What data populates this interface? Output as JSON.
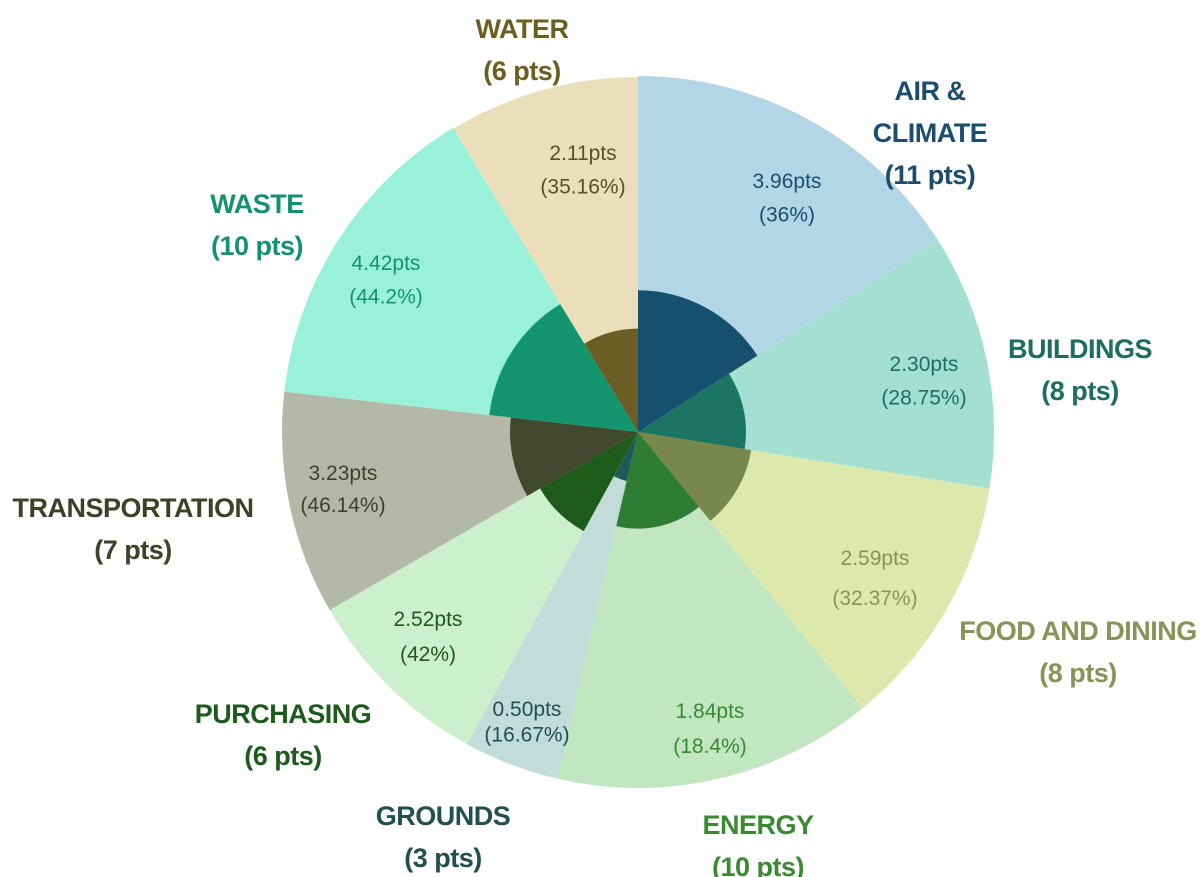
{
  "chart_data": {
    "type": "pie",
    "segments": [
      {
        "category": "AIR & CLIMATE",
        "category_lines": [
          "AIR &",
          "CLIMATE"
        ],
        "max_label": "(11 pts)",
        "max_pts": 11,
        "score_label": "3.96pts",
        "pct_label": "(36%)",
        "score": 3.96,
        "percent": 36,
        "outer_color": "#b2d6e5",
        "inner_color": "#16506f",
        "label_color": "#1b4d6e",
        "value_color": "#1b4d6e"
      },
      {
        "category": "BUILDINGS",
        "category_lines": [
          "BUILDINGS"
        ],
        "max_label": "(8 pts)",
        "max_pts": 8,
        "score_label": "2.30pts",
        "pct_label": "(28.75%)",
        "score": 2.3,
        "percent": 28.75,
        "outer_color": "#a4e0d2",
        "inner_color": "#1c7563",
        "label_color": "#1d6e5e",
        "value_color": "#1d6e5e"
      },
      {
        "category": "FOOD AND DINING",
        "category_lines": [
          "FOOD AND DINING"
        ],
        "max_label": "(8 pts)",
        "max_pts": 8,
        "score_label": "2.59pts",
        "pct_label": "(32.37%)",
        "score": 2.59,
        "percent": 32.37,
        "outer_color": "#dde9ac",
        "inner_color": "#7a874c",
        "label_color": "#8a9357",
        "value_color": "#8a9357"
      },
      {
        "category": "ENERGY",
        "category_lines": [
          "ENERGY"
        ],
        "max_label": "(10 pts)",
        "max_pts": 10,
        "score_label": "1.84pts",
        "pct_label": "(18.4%)",
        "score": 1.84,
        "percent": 18.4,
        "outer_color": "#c1e6c0",
        "inner_color": "#2f7d34",
        "label_color": "#3a8a32",
        "value_color": "#3a8a32"
      },
      {
        "category": "GROUNDS",
        "category_lines": [
          "GROUNDS"
        ],
        "max_label": "(3 pts)",
        "max_pts": 3,
        "score_label": "0.50pts",
        "pct_label": "(16.67%)",
        "score": 0.5,
        "percent": 16.67,
        "outer_color": "#c2dcd9",
        "inner_color": "#1f5a58",
        "label_color": "#22504f",
        "value_color": "#22504f"
      },
      {
        "category": "PURCHASING",
        "category_lines": [
          "PURCHASING"
        ],
        "max_label": "(6 pts)",
        "max_pts": 6,
        "score_label": "2.52pts",
        "pct_label": "(42%)",
        "score": 2.52,
        "percent": 42,
        "outer_color": "#ccefcc",
        "inner_color": "#1e5a1a",
        "label_color": "#1d5a1d",
        "value_color": "#1d5a1d"
      },
      {
        "category": "TRANSPORTATION",
        "category_lines": [
          "TRANSPORTATION"
        ],
        "max_label": "(7 pts)",
        "max_pts": 7,
        "score_label": "3.23pts",
        "pct_label": "(46.14%)",
        "score": 3.23,
        "percent": 46.14,
        "outer_color": "#b4b8a6",
        "inner_color": "#42482d",
        "label_color": "#3e4128",
        "value_color": "#3e4128"
      },
      {
        "category": "WASTE",
        "category_lines": [
          "WASTE"
        ],
        "max_label": "(10 pts)",
        "max_pts": 10,
        "score_label": "4.42pts",
        "pct_label": "(44.2%)",
        "score": 4.42,
        "percent": 44.2,
        "outer_color": "#9af1d9",
        "inner_color": "#14956e",
        "label_color": "#149270",
        "value_color": "#149270"
      },
      {
        "category": "WATER",
        "category_lines": [
          "WATER"
        ],
        "max_label": "(6 pts)",
        "max_pts": 6,
        "score_label": "2.11pts",
        "pct_label": "(35.16%)",
        "score": 2.11,
        "percent": 35.16,
        "outer_color": "#ebdfbb",
        "inner_color": "#6b5e24",
        "label_color": "#6b5e20",
        "value_color": "#5a4f2a"
      }
    ]
  }
}
